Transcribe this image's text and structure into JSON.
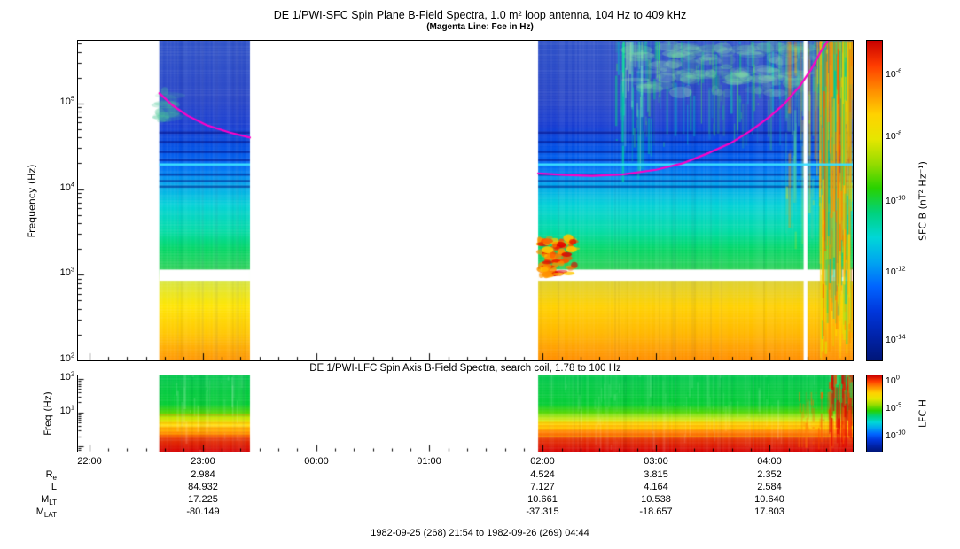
{
  "figure": {
    "caption": "1982-09-25 (268) 21:54 to 1982-09-26 (269) 04:44"
  },
  "time_axis": {
    "start_label": "21:54",
    "end_label": "04:44",
    "total_minutes": 410,
    "hour_ticks": [
      {
        "label": "22:00",
        "minute": 6
      },
      {
        "label": "23:00",
        "minute": 66
      },
      {
        "label": "00:00",
        "minute": 126
      },
      {
        "label": "01:00",
        "minute": 186
      },
      {
        "label": "02:00",
        "minute": 246
      },
      {
        "label": "03:00",
        "minute": 306
      },
      {
        "label": "04:00",
        "minute": 366
      }
    ]
  },
  "ephemeris": {
    "columns_minutes": [
      66,
      246,
      306,
      366
    ],
    "rows": [
      {
        "label": "R",
        "sub": "e",
        "values": [
          "2.984",
          "4.524",
          "3.815",
          "2.352"
        ]
      },
      {
        "label": "L",
        "sub": "",
        "values": [
          "84.932",
          "7.127",
          "4.164",
          "2.584"
        ]
      },
      {
        "label": "M",
        "sub": "LT",
        "values": [
          "17.225",
          "10.661",
          "10.538",
          "10.640"
        ]
      },
      {
        "label": "M",
        "sub": "LAT",
        "values": [
          "-80.149",
          "-37.315",
          "-18.657",
          "17.803"
        ]
      }
    ]
  },
  "chart_data": [
    {
      "type": "heatmap",
      "name": "sfc-spectrogram",
      "title": "DE 1/PWI-SFC  Spin Plane B-Field Spectra, 1.0 m² loop antenna, 104 Hz to 409 kHz",
      "subtitle": "(Magenta Line: Fce in Hz)",
      "ylabel": "Frequency (Hz)",
      "y_scale": "log",
      "freq_range_hz": [
        100,
        540000
      ],
      "y_ticks": [
        {
          "exp": "2",
          "hz": 100
        },
        {
          "exp": "3",
          "hz": 1000
        },
        {
          "exp": "4",
          "hz": 10000
        },
        {
          "exp": "5",
          "hz": 100000
        }
      ],
      "colorbar": {
        "label": "SFC B (nT² Hz⁻¹)",
        "ticks": [
          {
            "exp": "-6",
            "frac": 0.108
          },
          {
            "exp": "-8",
            "frac": 0.302
          },
          {
            "exp": "-10",
            "frac": 0.504
          },
          {
            "exp": "-12",
            "frac": 0.726
          },
          {
            "exp": "-14",
            "frac": 0.939
          }
        ],
        "gradient": [
          "#c80000",
          "#ff3c00",
          "#ff8c00",
          "#ffd200",
          "#e6e600",
          "#96dc00",
          "#28d200",
          "#00d27d",
          "#00d7d7",
          "#00a5f0",
          "#0064ff",
          "#0037dc",
          "#0023aa",
          "#001678"
        ]
      },
      "segments_min": [
        [
          43,
          91
        ],
        [
          243.5,
          410
        ]
      ],
      "gap_band_hz": [
        850,
        1150
      ],
      "background_stops": [
        [
          100,
          "#ff9600"
        ],
        [
          210,
          "#ffc800"
        ],
        [
          430,
          "#ffe600"
        ],
        [
          850,
          "#d8e63c"
        ],
        [
          1150,
          "#30d25a"
        ],
        [
          2000,
          "#00d764"
        ],
        [
          3200,
          "#00dca5"
        ],
        [
          6500,
          "#00d2d7"
        ],
        [
          12000,
          "#00a0f0"
        ],
        [
          19000,
          "#0069f5"
        ],
        [
          30000,
          "#0050e6"
        ],
        [
          55000,
          "#173cd2"
        ],
        [
          120000,
          "#2846c8"
        ],
        [
          540000,
          "#2d50c8"
        ]
      ],
      "dark_stripes_hz": [
        11000,
        12800,
        15200,
        22500,
        28000,
        36500,
        47000
      ],
      "cyan_line": {
        "hz": 19500,
        "color": "#3ce1ff"
      },
      "fce_line": {
        "color": "#ff00c8",
        "segments": [
          [
            [
              43,
              132000
            ],
            [
              50,
              95000
            ],
            [
              58,
              72000
            ],
            [
              68,
              56000
            ],
            [
              80,
              46000
            ],
            [
              91,
              40000
            ]
          ],
          [
            [
              243.5,
              15200
            ],
            [
              258,
              14600
            ],
            [
              272,
              14300
            ],
            [
              288,
              14800
            ],
            [
              306,
              16800
            ],
            [
              320,
              20000
            ],
            [
              334,
              26500
            ],
            [
              346,
              35000
            ],
            [
              356,
              48000
            ],
            [
              366,
              70000
            ],
            [
              374,
              100000
            ],
            [
              382,
              160000
            ],
            [
              388,
              250000
            ],
            [
              393,
              400000
            ],
            [
              396.5,
              530000
            ]
          ]
        ]
      },
      "features": [
        {
          "kind": "bottom_warm",
          "t": [
            243.5,
            410
          ],
          "hz": [
            100,
            850
          ],
          "color": "rgba(255,100,0,0.15)"
        },
        {
          "kind": "blobs",
          "t": [
            244,
            263
          ],
          "hz": [
            950,
            2700
          ],
          "colors": [
            "#ff5000",
            "#e10000",
            "#ff9100",
            "#ffc800"
          ],
          "count": 80
        },
        {
          "kind": "patches",
          "t": [
            43,
            50
          ],
          "hz": [
            60000,
            140000
          ],
          "colors": [
            "#4bc896"
          ],
          "count": 14,
          "alpha": [
            0.15,
            0.35
          ]
        },
        {
          "kind": "vstreaks",
          "t": [
            284,
            404
          ],
          "hz": [
            28000,
            530000
          ],
          "colors": [
            "#00d782",
            "#55e655",
            "#00c8c8",
            "#37c86e"
          ],
          "count": 170,
          "alpha": [
            0.12,
            0.5
          ]
        },
        {
          "kind": "vstreaks",
          "t": [
            287,
            303
          ],
          "hz": [
            8000,
            530000
          ],
          "colors": [
            "#00e1a0",
            "#69e1c8",
            "#96e6af"
          ],
          "count": 45,
          "alpha": [
            0.2,
            0.55
          ]
        },
        {
          "kind": "patches",
          "t": [
            290,
            388
          ],
          "hz": [
            130000,
            480000
          ],
          "colors": [
            "#78e69b",
            "#9be6b4"
          ],
          "count": 110,
          "alpha": [
            0.1,
            0.3
          ]
        },
        {
          "kind": "vstreaks",
          "t": [
            374,
            392
          ],
          "hz": [
            1500,
            530000
          ],
          "colors": [
            "#ff9600",
            "#50d2a0",
            "#ffe100"
          ],
          "count": 60,
          "alpha": [
            0.15,
            0.45
          ]
        },
        {
          "kind": "gap",
          "t": [
            384,
            386
          ]
        },
        {
          "kind": "vstreaks",
          "t": [
            392,
            409.5
          ],
          "hz": [
            100,
            530000
          ],
          "colors": [
            "#ff9600",
            "#ffd200",
            "#46d750",
            "#00c8a0",
            "#ff5a00",
            "#e1e100"
          ],
          "count": 300,
          "alpha": [
            0.25,
            0.8
          ]
        }
      ]
    },
    {
      "type": "heatmap",
      "name": "lfc-spectrogram",
      "title": "DE 1/PWI-LFC  Spin Axis B-Field Spectra, search coil, 1.78 to 100 Hz",
      "ylabel": "Freq (Hz)",
      "y_scale": "log",
      "freq_range_hz": [
        0.7,
        126
      ],
      "y_ticks": [
        {
          "exp": "2",
          "hz": 100
        },
        {
          "exp": "1",
          "hz": 10
        }
      ],
      "colorbar": {
        "label": "LFC H",
        "ticks": [
          {
            "exp": "0",
            "frac": 0.08
          },
          {
            "exp": "-5",
            "frac": 0.44
          },
          {
            "exp": "-10",
            "frac": 0.8
          }
        ],
        "gradient": [
          "#c80000",
          "#ff3c00",
          "#ff8c00",
          "#ffd200",
          "#e6e600",
          "#96dc00",
          "#28d200",
          "#00d27d",
          "#00d7d7",
          "#00a5f0",
          "#0064ff",
          "#0037dc",
          "#0023aa",
          "#001678"
        ]
      },
      "segments_min": [
        [
          43,
          91
        ],
        [
          243.5,
          410
        ]
      ],
      "background_stops": [
        [
          0.7,
          "#d70000"
        ],
        [
          1.6,
          "#e63200"
        ],
        [
          2.4,
          "#ff7800"
        ],
        [
          3.4,
          "#ffb400"
        ],
        [
          4.6,
          "#ffe600"
        ],
        [
          7,
          "#b4e600"
        ],
        [
          10,
          "#50d700"
        ],
        [
          18,
          "#00cd32"
        ],
        [
          126,
          "#00c84b"
        ]
      ],
      "features": [
        {
          "kind": "hstripes",
          "hz": [
            2.0,
            9
          ],
          "step": 3,
          "colors": [
            "rgba(255,120,0,0.28)",
            "rgba(255,225,0,0.3)",
            "rgba(255,255,255,0.12)"
          ]
        },
        {
          "kind": "vstreaks",
          "t": [
            50,
            91
          ],
          "hz": [
            0.7,
            126
          ],
          "colors": [
            "#ffffff"
          ],
          "count": 30,
          "alpha": [
            0.04,
            0.15
          ]
        },
        {
          "kind": "vstreaks",
          "t": [
            250,
            410
          ],
          "hz": [
            0.7,
            126
          ],
          "colors": [
            "#ffffff"
          ],
          "count": 120,
          "alpha": [
            0.03,
            0.12
          ]
        },
        {
          "kind": "vstreaks",
          "t": [
            381,
            397
          ],
          "hz": [
            0.7,
            40
          ],
          "colors": [
            "#ff7800",
            "#ff5000"
          ],
          "count": 35,
          "alpha": [
            0.2,
            0.5
          ]
        },
        {
          "kind": "vstreaks",
          "t": [
            397,
            410
          ],
          "hz": [
            0.7,
            126
          ],
          "colors": [
            "#e10000",
            "#ff4600"
          ],
          "count": 70,
          "alpha": [
            0.3,
            0.75
          ]
        }
      ]
    }
  ]
}
